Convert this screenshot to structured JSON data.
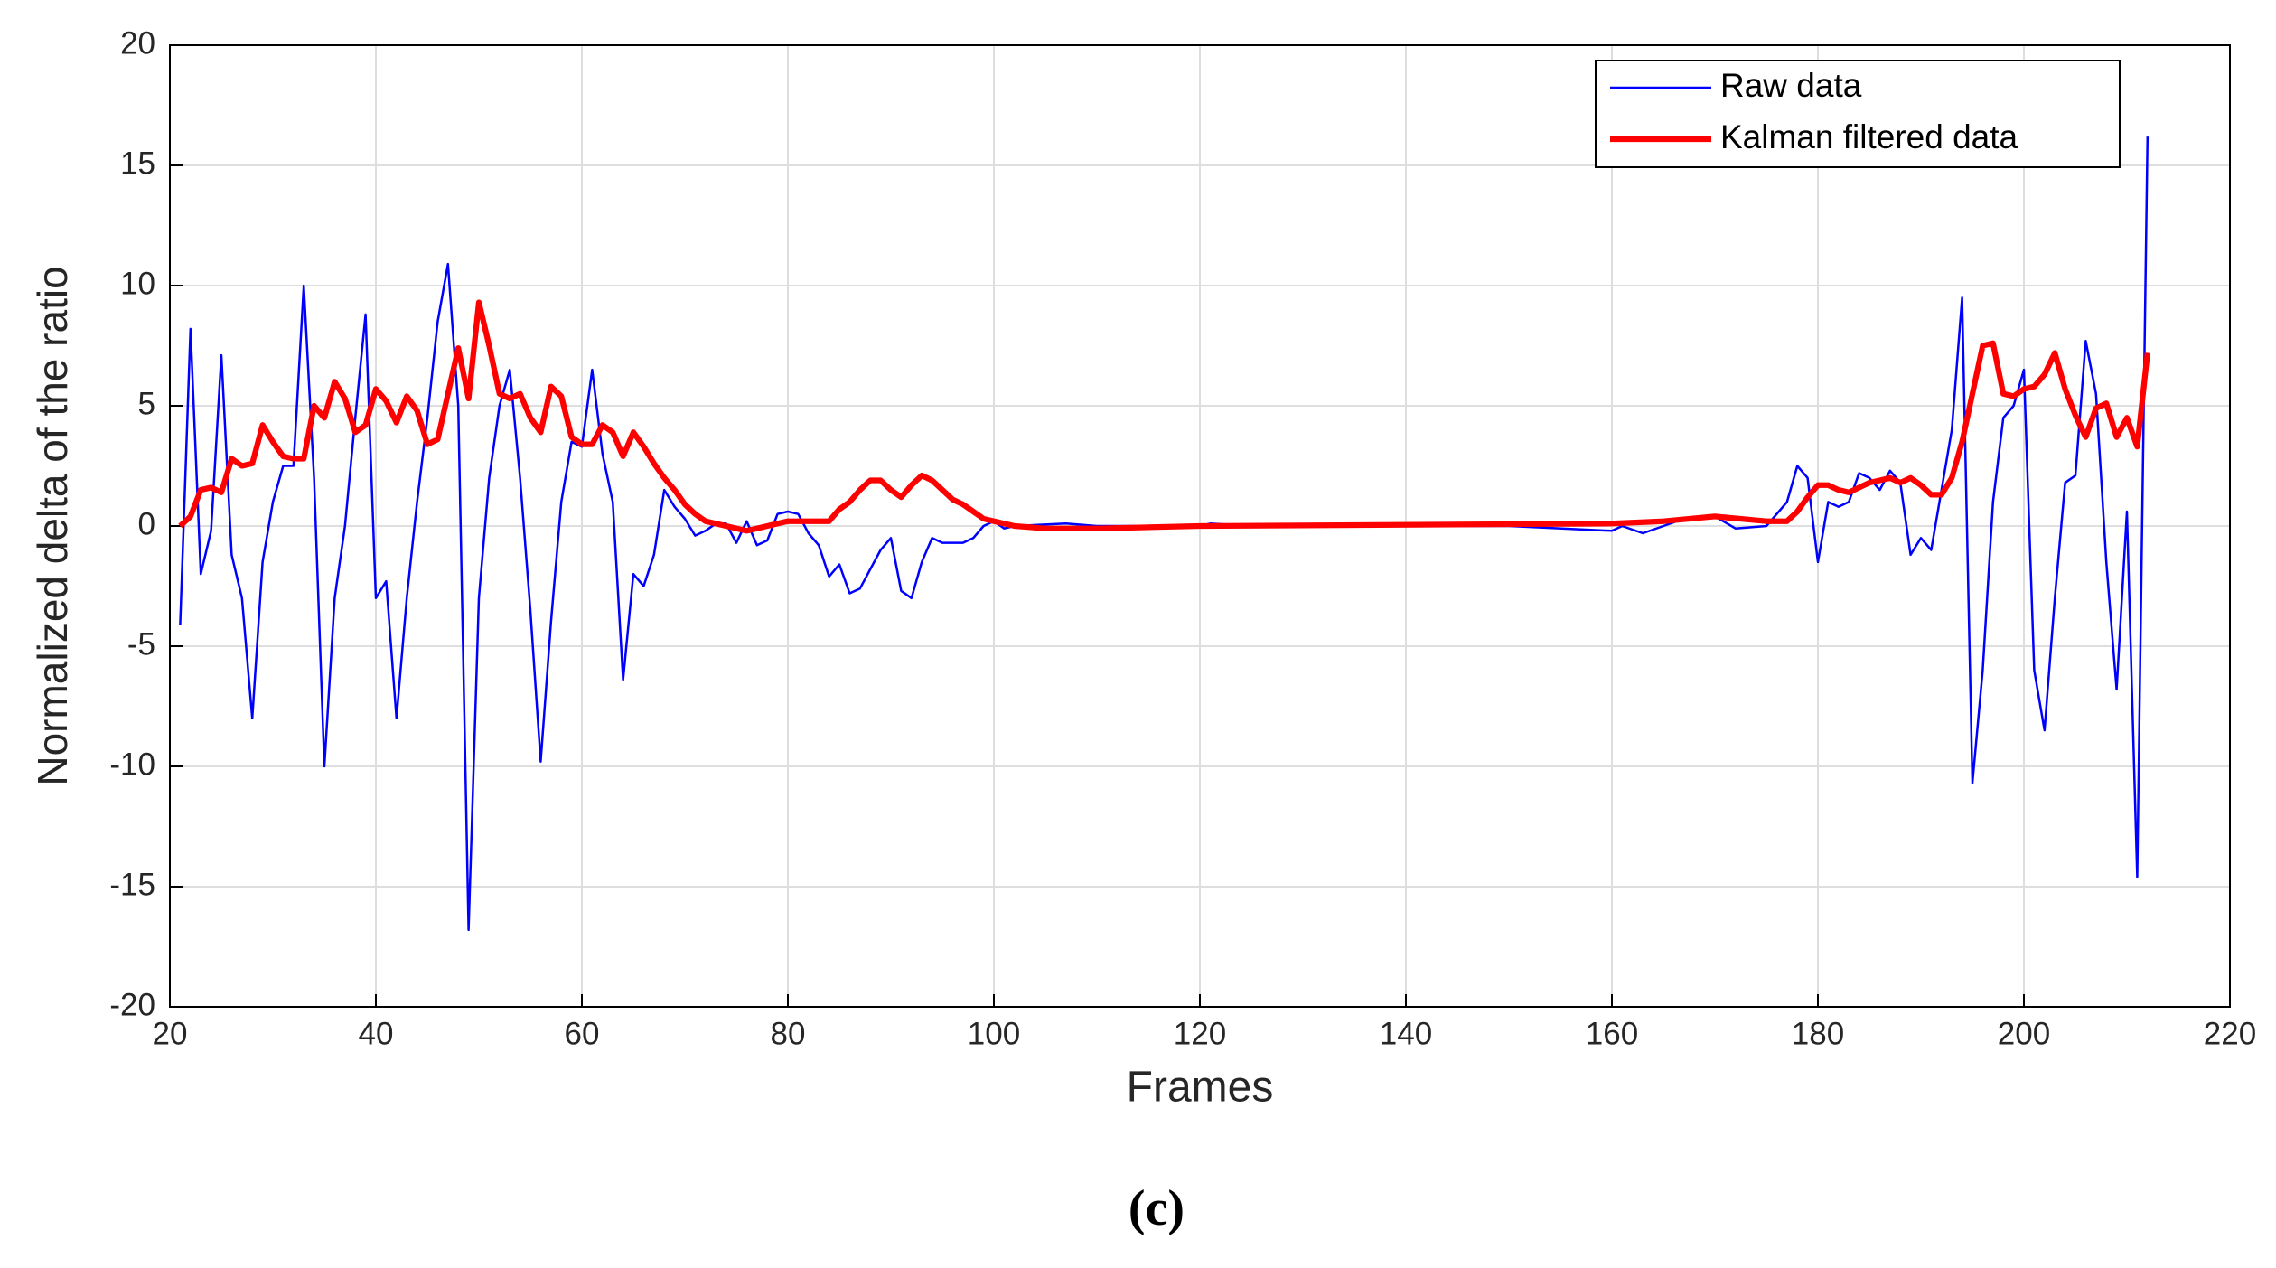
{
  "chart_data": {
    "type": "line",
    "xlabel": "Frames",
    "ylabel": "Normalized delta of the ratio",
    "caption": "(c)",
    "xlim": [
      20,
      220
    ],
    "ylim": [
      -20,
      20
    ],
    "xticks": [
      20,
      40,
      60,
      80,
      100,
      120,
      140,
      160,
      180,
      200,
      220
    ],
    "yticks": [
      -20,
      -15,
      -10,
      -5,
      0,
      5,
      10,
      15,
      20
    ],
    "grid": true,
    "legend": "upper right",
    "series": [
      {
        "name": "Raw data",
        "color": "#0000ff",
        "width": 1,
        "x": [
          21,
          22,
          23,
          24,
          25,
          26,
          27,
          28,
          29,
          30,
          31,
          32,
          33,
          34,
          35,
          36,
          37,
          38,
          39,
          40,
          41,
          42,
          43,
          44,
          45,
          46,
          47,
          48,
          49,
          50,
          51,
          52,
          53,
          54,
          55,
          56,
          57,
          58,
          59,
          60,
          61,
          62,
          63,
          64,
          65,
          66,
          67,
          68,
          69,
          70,
          71,
          72,
          73,
          74,
          75,
          76,
          77,
          78,
          79,
          80,
          81,
          82,
          83,
          84,
          85,
          86,
          87,
          88,
          89,
          90,
          91,
          92,
          93,
          94,
          95,
          96,
          97,
          98,
          99,
          100,
          101,
          102,
          107,
          110,
          115,
          120,
          121,
          125,
          130,
          140,
          150,
          160,
          161,
          163,
          165,
          167,
          170,
          172,
          175,
          177,
          178,
          179,
          180,
          181,
          182,
          183,
          184,
          185,
          186,
          187,
          188,
          189,
          190,
          191,
          192,
          193,
          194,
          195,
          196,
          197,
          198,
          199,
          200,
          201,
          202,
          203,
          204,
          205,
          206,
          207,
          208,
          209,
          210,
          211,
          212
        ],
        "values": [
          -4.1,
          8.2,
          -2,
          -0.2,
          7.1,
          -1.2,
          -3,
          -8,
          -1.5,
          1,
          2.5,
          2.5,
          10,
          2,
          -10,
          -3,
          0,
          4.5,
          8.8,
          -3,
          -2.3,
          -8,
          -3,
          1,
          4.5,
          8.5,
          10.9,
          5,
          -16.8,
          -3,
          2,
          5,
          6.5,
          2,
          -3.5,
          -9.8,
          -4,
          1,
          3.5,
          3.3,
          6.5,
          3,
          1,
          -6.4,
          -2,
          -2.5,
          -1.2,
          1.5,
          0.8,
          0.3,
          -0.4,
          -0.2,
          0.1,
          0.1,
          -0.7,
          0.2,
          -0.8,
          -0.6,
          0.5,
          0.6,
          0.5,
          -0.3,
          -0.8,
          -2.1,
          -1.6,
          -2.8,
          -2.6,
          -1.8,
          -1,
          -0.5,
          -2.7,
          -3,
          -1.5,
          -0.5,
          -0.7,
          -0.7,
          -0.7,
          -0.5,
          0,
          0.2,
          -0.1,
          0,
          0.1,
          0,
          0,
          0,
          0.1,
          0,
          0,
          0,
          0,
          -0.2,
          0,
          -0.3,
          0,
          0.3,
          0.4,
          -0.1,
          0,
          1,
          2.5,
          2,
          -1.5,
          1,
          0.8,
          1,
          2.2,
          2,
          1.5,
          2.3,
          1.8,
          -1.2,
          -0.5,
          -1,
          1.5,
          4,
          9.5,
          -10.7,
          -6,
          1,
          4.5,
          5,
          6.5,
          -6,
          -8.5,
          -3,
          1.8,
          2.1,
          7.7,
          5.5,
          -1.5,
          -6.8,
          0.6,
          -14.6,
          16.2
        ]
      },
      {
        "name": "Kalman filtered data",
        "color": "#ff0000",
        "width": 2.5,
        "x": [
          21,
          22,
          23,
          24,
          25,
          26,
          27,
          28,
          29,
          30,
          31,
          32,
          33,
          34,
          35,
          36,
          37,
          38,
          39,
          40,
          41,
          42,
          43,
          44,
          45,
          46,
          47,
          48,
          49,
          50,
          51,
          52,
          53,
          54,
          55,
          56,
          57,
          58,
          59,
          60,
          61,
          62,
          63,
          64,
          65,
          66,
          67,
          68,
          69,
          70,
          71,
          72,
          73,
          74,
          75,
          76,
          77,
          78,
          79,
          80,
          82,
          84,
          85,
          86,
          87,
          88,
          89,
          90,
          91,
          92,
          93,
          94,
          95,
          96,
          97,
          98,
          99,
          100,
          102,
          105,
          110,
          120,
          160,
          165,
          170,
          175,
          177,
          178,
          179,
          180,
          181,
          182,
          183,
          184,
          185,
          186,
          187,
          188,
          189,
          190,
          191,
          192,
          193,
          194,
          195,
          196,
          197,
          198,
          199,
          200,
          201,
          202,
          203,
          204,
          205,
          206,
          207,
          208,
          209,
          210,
          211,
          212
        ],
        "values": [
          0,
          0.4,
          1.5,
          1.6,
          1.4,
          2.8,
          2.5,
          2.6,
          4.2,
          3.5,
          2.9,
          2.8,
          2.8,
          5,
          4.5,
          6,
          5.3,
          3.9,
          4.2,
          5.7,
          5.2,
          4.3,
          5.4,
          4.8,
          3.4,
          3.6,
          5.5,
          7.4,
          5.3,
          9.3,
          7.5,
          5.5,
          5.3,
          5.5,
          4.5,
          3.9,
          5.8,
          5.4,
          3.7,
          3.4,
          3.4,
          4.2,
          3.9,
          2.9,
          3.9,
          3.3,
          2.6,
          2,
          1.5,
          0.9,
          0.5,
          0.2,
          0.1,
          0,
          -0.1,
          -0.2,
          -0.1,
          0,
          0.1,
          0.2,
          0.2,
          0.2,
          0.7,
          1,
          1.5,
          1.9,
          1.9,
          1.5,
          1.2,
          1.7,
          2.1,
          1.9,
          1.5,
          1.1,
          0.9,
          0.6,
          0.3,
          0.2,
          0,
          -0.1,
          -0.1,
          0,
          0.1,
          0.2,
          0.4,
          0.2,
          0.2,
          0.6,
          1.2,
          1.7,
          1.7,
          1.5,
          1.4,
          1.6,
          1.8,
          1.9,
          2,
          1.8,
          2,
          1.7,
          1.3,
          1.3,
          2,
          3.5,
          5.5,
          7.5,
          7.6,
          5.5,
          5.4,
          5.7,
          5.8,
          6.3,
          7.2,
          5.7,
          4.6,
          3.7,
          4.9,
          5.1,
          3.7,
          4.5,
          3.3,
          7.2
        ]
      }
    ]
  }
}
